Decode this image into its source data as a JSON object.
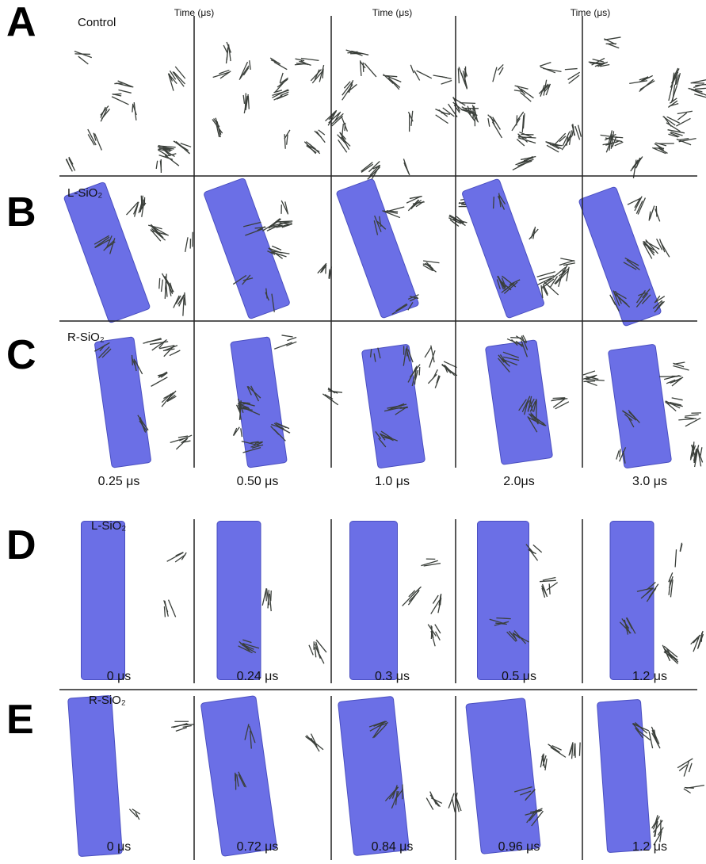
{
  "header": {
    "time_labels": [
      "Time (μs)",
      "Time (μs)",
      "Time (μs)"
    ]
  },
  "panels": [
    {
      "letter": "A",
      "label": "Control"
    },
    {
      "letter": "B",
      "label": "L-SiO₂"
    },
    {
      "letter": "C",
      "label": "R-SiO₂",
      "times": [
        "0.25 μs",
        "0.50 μs",
        "1.0 μs",
        "2.0μs",
        "3.0 μs"
      ]
    },
    {
      "letter": "D",
      "label": "L-SiO₂",
      "times": [
        "0 μs",
        "0.24 μs",
        "0.3 μs",
        "0.5 μs",
        "1.2 μs"
      ]
    },
    {
      "letter": "E",
      "label": "R-SiO₂",
      "times": [
        "0 μs",
        "0.72 μs",
        "0.84 μs",
        "0.96 μs",
        "1.2 μs"
      ]
    }
  ]
}
